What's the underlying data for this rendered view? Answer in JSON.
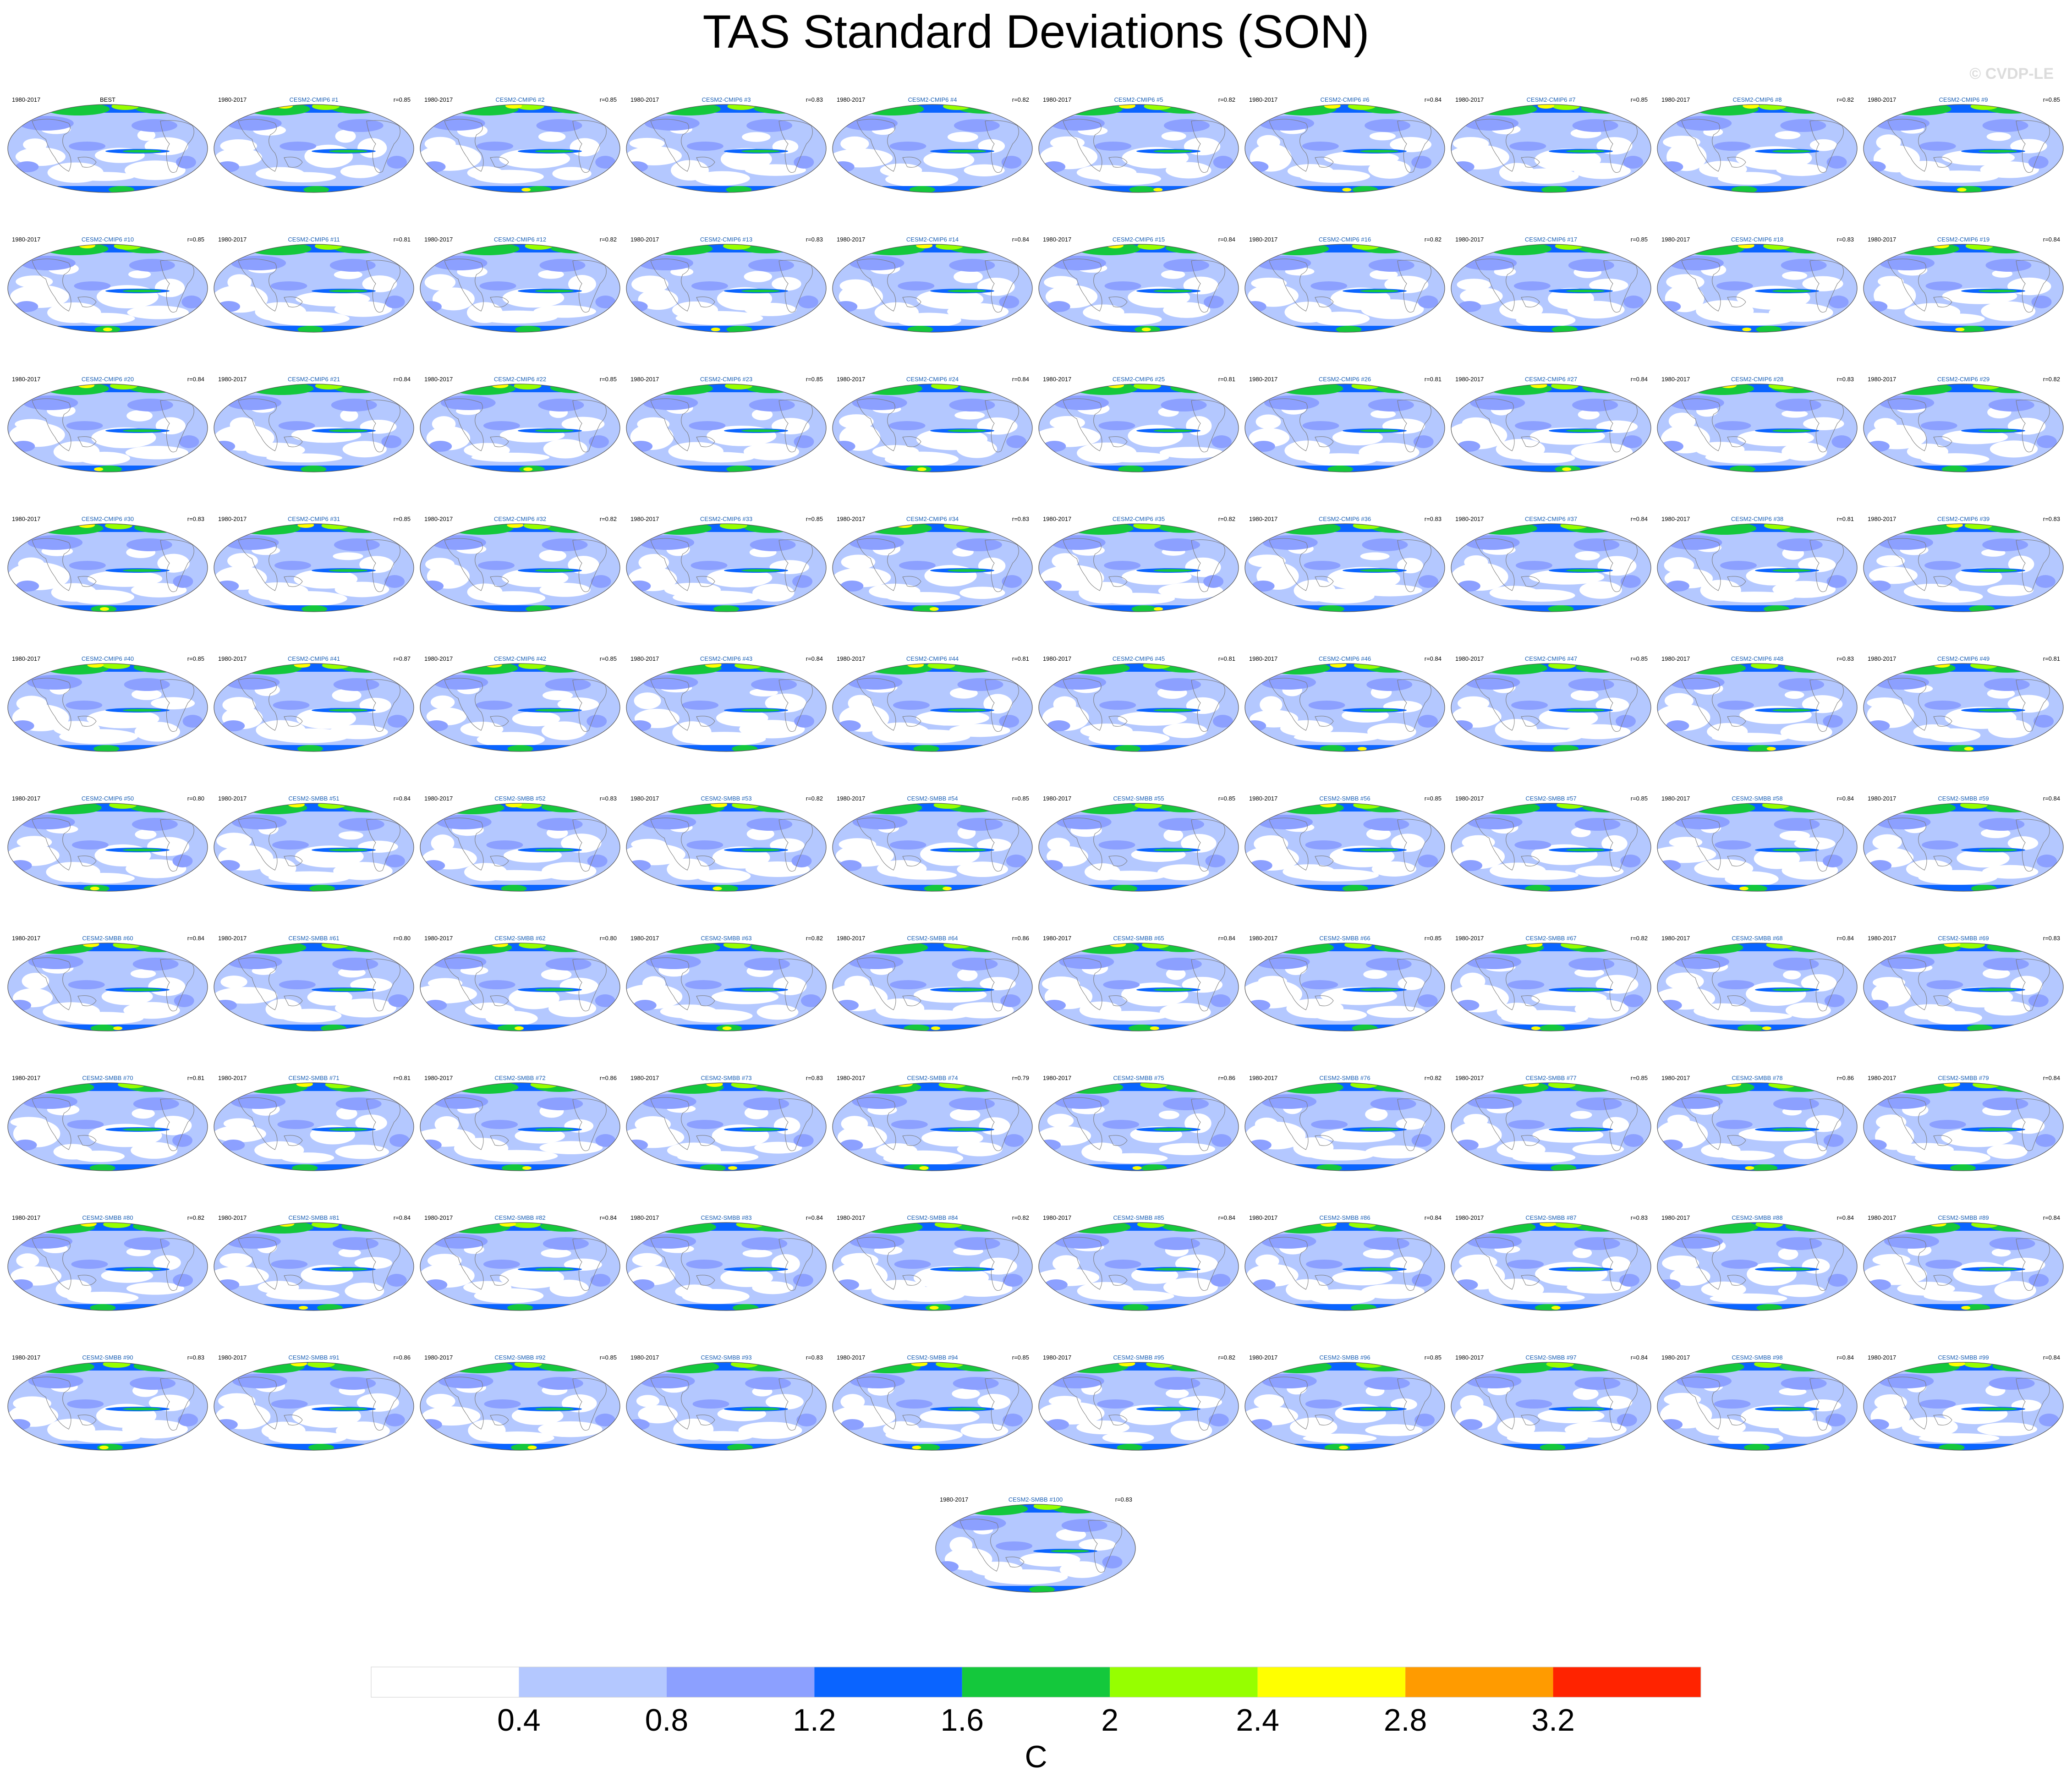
{
  "title": "TAS Standard Deviations (SON)",
  "watermark": "© CVDP-LE",
  "chart_data": {
    "type": "map-grid",
    "variable": "TAS",
    "season": "SON",
    "projection": "robinson-like global maps",
    "period": "1980-2017",
    "observations": {
      "name": "BEST",
      "period": "1980-2017",
      "r": ""
    },
    "members": [
      {
        "name": "CESM2-CMIP6 #1",
        "r": "r=0.85"
      },
      {
        "name": "CESM2-CMIP6 #2",
        "r": "r=0.85"
      },
      {
        "name": "CESM2-CMIP6 #3",
        "r": "r=0.83"
      },
      {
        "name": "CESM2-CMIP6 #4",
        "r": "r=0.82"
      },
      {
        "name": "CESM2-CMIP6 #5",
        "r": "r=0.82"
      },
      {
        "name": "CESM2-CMIP6 #6",
        "r": "r=0.84"
      },
      {
        "name": "CESM2-CMIP6 #7",
        "r": "r=0.85"
      },
      {
        "name": "CESM2-CMIP6 #8",
        "r": "r=0.82"
      },
      {
        "name": "CESM2-CMIP6 #9",
        "r": "r=0.85"
      },
      {
        "name": "CESM2-CMIP6 #10",
        "r": "r=0.85"
      },
      {
        "name": "CESM2-CMIP6 #11",
        "r": "r=0.81"
      },
      {
        "name": "CESM2-CMIP6 #12",
        "r": "r=0.82"
      },
      {
        "name": "CESM2-CMIP6 #13",
        "r": "r=0.83"
      },
      {
        "name": "CESM2-CMIP6 #14",
        "r": "r=0.84"
      },
      {
        "name": "CESM2-CMIP6 #15",
        "r": "r=0.84"
      },
      {
        "name": "CESM2-CMIP6 #16",
        "r": "r=0.82"
      },
      {
        "name": "CESM2-CMIP6 #17",
        "r": "r=0.85"
      },
      {
        "name": "CESM2-CMIP6 #18",
        "r": "r=0.83"
      },
      {
        "name": "CESM2-CMIP6 #19",
        "r": "r=0.84"
      },
      {
        "name": "CESM2-CMIP6 #20",
        "r": "r=0.84"
      },
      {
        "name": "CESM2-CMIP6 #21",
        "r": "r=0.84"
      },
      {
        "name": "CESM2-CMIP6 #22",
        "r": "r=0.85"
      },
      {
        "name": "CESM2-CMIP6 #23",
        "r": "r=0.85"
      },
      {
        "name": "CESM2-CMIP6 #24",
        "r": "r=0.84"
      },
      {
        "name": "CESM2-CMIP6 #25",
        "r": "r=0.81"
      },
      {
        "name": "CESM2-CMIP6 #26",
        "r": "r=0.81"
      },
      {
        "name": "CESM2-CMIP6 #27",
        "r": "r=0.84"
      },
      {
        "name": "CESM2-CMIP6 #28",
        "r": "r=0.83"
      },
      {
        "name": "CESM2-CMIP6 #29",
        "r": "r=0.82"
      },
      {
        "name": "CESM2-CMIP6 #30",
        "r": "r=0.83"
      },
      {
        "name": "CESM2-CMIP6 #31",
        "r": "r=0.85"
      },
      {
        "name": "CESM2-CMIP6 #32",
        "r": "r=0.82"
      },
      {
        "name": "CESM2-CMIP6 #33",
        "r": "r=0.85"
      },
      {
        "name": "CESM2-CMIP6 #34",
        "r": "r=0.83"
      },
      {
        "name": "CESM2-CMIP6 #35",
        "r": "r=0.82"
      },
      {
        "name": "CESM2-CMIP6 #36",
        "r": "r=0.83"
      },
      {
        "name": "CESM2-CMIP6 #37",
        "r": "r=0.84"
      },
      {
        "name": "CESM2-CMIP6 #38",
        "r": "r=0.81"
      },
      {
        "name": "CESM2-CMIP6 #39",
        "r": "r=0.83"
      },
      {
        "name": "CESM2-CMIP6 #40",
        "r": "r=0.85"
      },
      {
        "name": "CESM2-CMIP6 #41",
        "r": "r=0.87"
      },
      {
        "name": "CESM2-CMIP6 #42",
        "r": "r=0.85"
      },
      {
        "name": "CESM2-CMIP6 #43",
        "r": "r=0.84"
      },
      {
        "name": "CESM2-CMIP6 #44",
        "r": "r=0.81"
      },
      {
        "name": "CESM2-CMIP6 #45",
        "r": "r=0.81"
      },
      {
        "name": "CESM2-CMIP6 #46",
        "r": "r=0.84"
      },
      {
        "name": "CESM2-CMIP6 #47",
        "r": "r=0.85"
      },
      {
        "name": "CESM2-CMIP6 #48",
        "r": "r=0.83"
      },
      {
        "name": "CESM2-CMIP6 #49",
        "r": "r=0.81"
      },
      {
        "name": "CESM2-CMIP6 #50",
        "r": "r=0.80"
      },
      {
        "name": "CESM2-SMBB #51",
        "r": "r=0.84"
      },
      {
        "name": "CESM2-SMBB #52",
        "r": "r=0.83"
      },
      {
        "name": "CESM2-SMBB #53",
        "r": "r=0.82"
      },
      {
        "name": "CESM2-SMBB #54",
        "r": "r=0.85"
      },
      {
        "name": "CESM2-SMBB #55",
        "r": "r=0.85"
      },
      {
        "name": "CESM2-SMBB #56",
        "r": "r=0.85"
      },
      {
        "name": "CESM2-SMBB #57",
        "r": "r=0.85"
      },
      {
        "name": "CESM2-SMBB #58",
        "r": "r=0.84"
      },
      {
        "name": "CESM2-SMBB #59",
        "r": "r=0.84"
      },
      {
        "name": "CESM2-SMBB #60",
        "r": "r=0.84"
      },
      {
        "name": "CESM2-SMBB #61",
        "r": "r=0.80"
      },
      {
        "name": "CESM2-SMBB #62",
        "r": "r=0.80"
      },
      {
        "name": "CESM2-SMBB #63",
        "r": "r=0.82"
      },
      {
        "name": "CESM2-SMBB #64",
        "r": "r=0.86"
      },
      {
        "name": "CESM2-SMBB #65",
        "r": "r=0.84"
      },
      {
        "name": "CESM2-SMBB #66",
        "r": "r=0.85"
      },
      {
        "name": "CESM2-SMBB #67",
        "r": "r=0.82"
      },
      {
        "name": "CESM2-SMBB #68",
        "r": "r=0.84"
      },
      {
        "name": "CESM2-SMBB #69",
        "r": "r=0.83"
      },
      {
        "name": "CESM2-SMBB #70",
        "r": "r=0.81"
      },
      {
        "name": "CESM2-SMBB #71",
        "r": "r=0.81"
      },
      {
        "name": "CESM2-SMBB #72",
        "r": "r=0.86"
      },
      {
        "name": "CESM2-SMBB #73",
        "r": "r=0.83"
      },
      {
        "name": "CESM2-SMBB #74",
        "r": "r=0.79"
      },
      {
        "name": "CESM2-SMBB #75",
        "r": "r=0.86"
      },
      {
        "name": "CESM2-SMBB #76",
        "r": "r=0.82"
      },
      {
        "name": "CESM2-SMBB #77",
        "r": "r=0.85"
      },
      {
        "name": "CESM2-SMBB #78",
        "r": "r=0.86"
      },
      {
        "name": "CESM2-SMBB #79",
        "r": "r=0.84"
      },
      {
        "name": "CESM2-SMBB #80",
        "r": "r=0.82"
      },
      {
        "name": "CESM2-SMBB #81",
        "r": "r=0.84"
      },
      {
        "name": "CESM2-SMBB #82",
        "r": "r=0.84"
      },
      {
        "name": "CESM2-SMBB #83",
        "r": "r=0.84"
      },
      {
        "name": "CESM2-SMBB #84",
        "r": "r=0.82"
      },
      {
        "name": "CESM2-SMBB #85",
        "r": "r=0.84"
      },
      {
        "name": "CESM2-SMBB #86",
        "r": "r=0.84"
      },
      {
        "name": "CESM2-SMBB #87",
        "r": "r=0.83"
      },
      {
        "name": "CESM2-SMBB #88",
        "r": "r=0.84"
      },
      {
        "name": "CESM2-SMBB #89",
        "r": "r=0.84"
      },
      {
        "name": "CESM2-SMBB #90",
        "r": "r=0.83"
      },
      {
        "name": "CESM2-SMBB #91",
        "r": "r=0.86"
      },
      {
        "name": "CESM2-SMBB #92",
        "r": "r=0.85"
      },
      {
        "name": "CESM2-SMBB #93",
        "r": "r=0.83"
      },
      {
        "name": "CESM2-SMBB #94",
        "r": "r=0.85"
      },
      {
        "name": "CESM2-SMBB #95",
        "r": "r=0.82"
      },
      {
        "name": "CESM2-SMBB #96",
        "r": "r=0.85"
      },
      {
        "name": "CESM2-SMBB #97",
        "r": "r=0.84"
      },
      {
        "name": "CESM2-SMBB #98",
        "r": "r=0.84"
      },
      {
        "name": "CESM2-SMBB #99",
        "r": "r=0.84"
      },
      {
        "name": "CESM2-SMBB #100",
        "r": "r=0.83"
      }
    ],
    "colorbar": {
      "unit": "C",
      "ticks": [
        "0.4",
        "0.8",
        "1.2",
        "1.6",
        "2",
        "2.4",
        "2.8",
        "3.2"
      ],
      "colors": [
        "#ffffff",
        "#b4c8ff",
        "#8ca0ff",
        "#0a64ff",
        "#14c83c",
        "#96ff00",
        "#ffff00",
        "#ff9b00",
        "#ff2300"
      ]
    },
    "map_colors": {
      "ocean_low": "#ffffff",
      "level1": "#b4c8ff",
      "level2": "#8ca0ff",
      "level3": "#0a64ff",
      "level4": "#14c83c",
      "level5": "#96ff00",
      "level6": "#ffff00",
      "level7": "#ff9b00"
    }
  }
}
